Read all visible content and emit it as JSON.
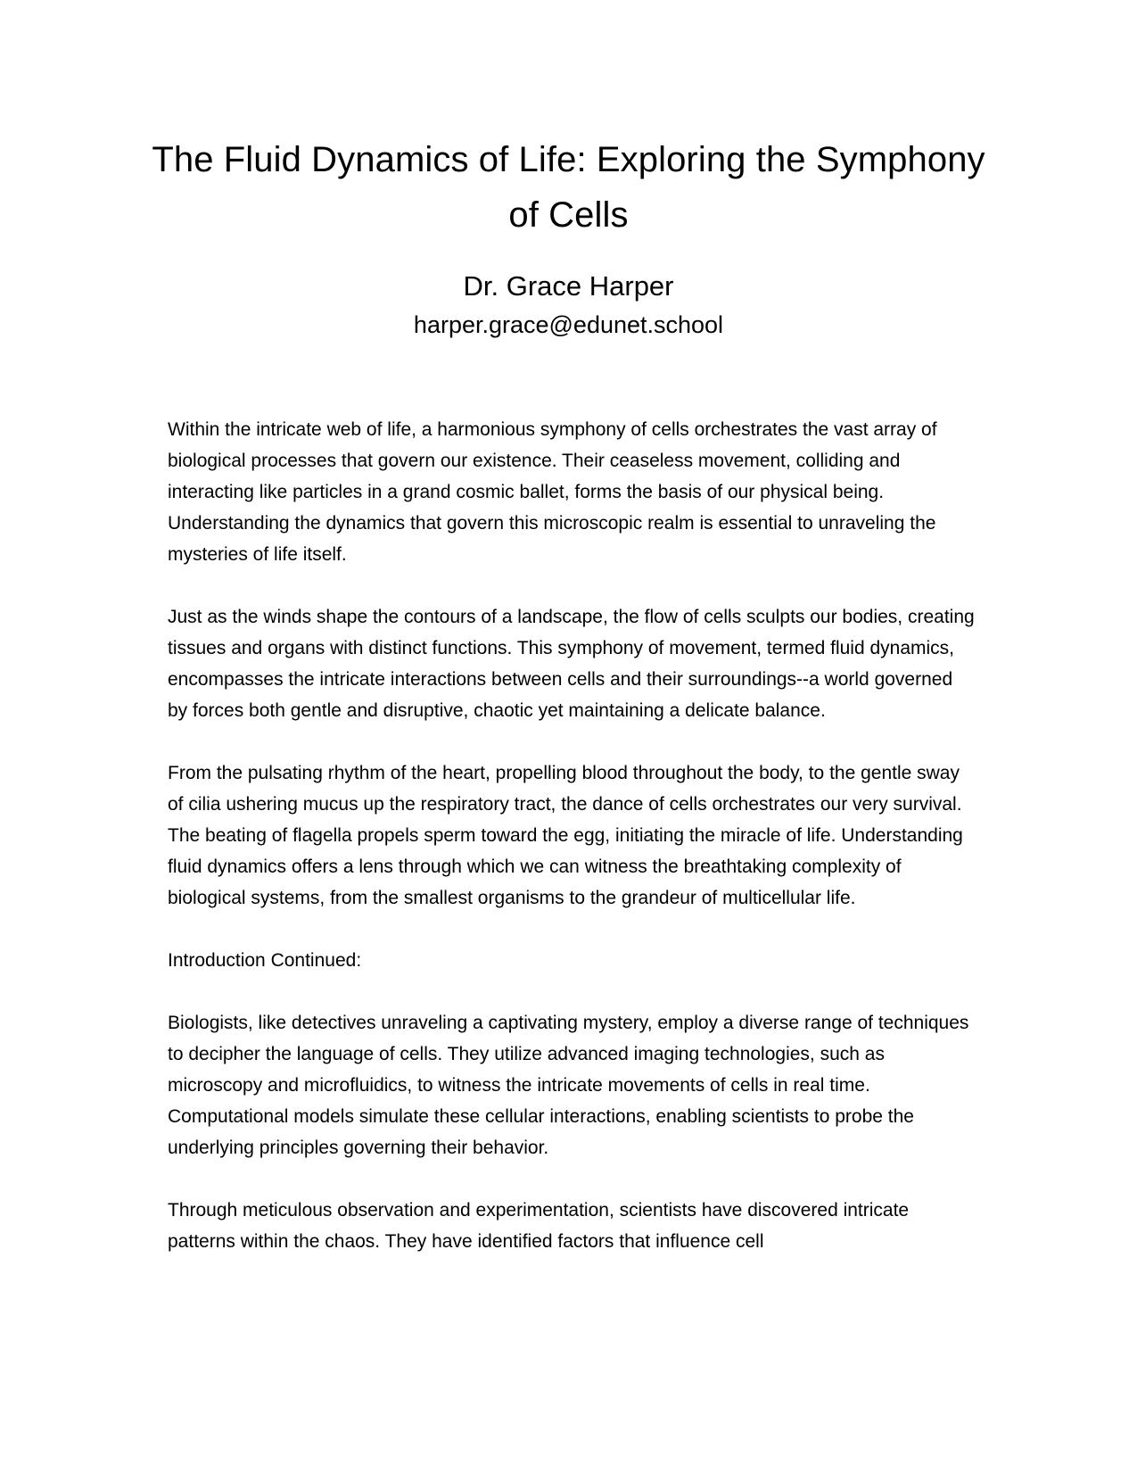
{
  "document": {
    "title": "The Fluid Dynamics of Life: Exploring the Symphony of Cells",
    "author": "Dr. Grace Harper",
    "email": "harper.grace@edunet.school",
    "paragraphs": [
      "Within the intricate web of life, a harmonious symphony of cells orchestrates the vast array of biological processes that govern our existence. Their ceaseless movement, colliding and interacting like particles in a grand cosmic ballet, forms the basis of our physical being. Understanding the dynamics that govern this microscopic realm is essential to unraveling the mysteries of life itself.",
      "Just as the winds shape the contours of a landscape, the flow of cells sculpts our bodies, creating tissues and organs with distinct functions. This symphony of movement, termed fluid dynamics, encompasses the intricate interactions between cells and their surroundings--a world governed by forces both gentle and disruptive, chaotic yet maintaining a delicate balance.",
      "From the pulsating rhythm of the heart, propelling blood throughout the body, to the gentle sway of cilia ushering mucus up the respiratory tract, the dance of cells orchestrates our very survival. The beating of flagella propels sperm toward the egg, initiating the miracle of life. Understanding fluid dynamics offers a lens through which we can witness the breathtaking complexity of biological systems, from the smallest organisms to the grandeur of multicellular life.",
      "Introduction Continued:",
      "Biologists, like detectives unraveling a captivating mystery, employ a diverse range of techniques to decipher the language of cells. They utilize advanced imaging technologies, such as microscopy and microfluidics, to witness the intricate movements of cells in real time. Computational models simulate these cellular interactions, enabling scientists to probe the underlying principles governing their behavior.",
      "Through meticulous observation and experimentation, scientists have discovered intricate patterns within the chaos. They have identified factors that influence cell"
    ]
  }
}
